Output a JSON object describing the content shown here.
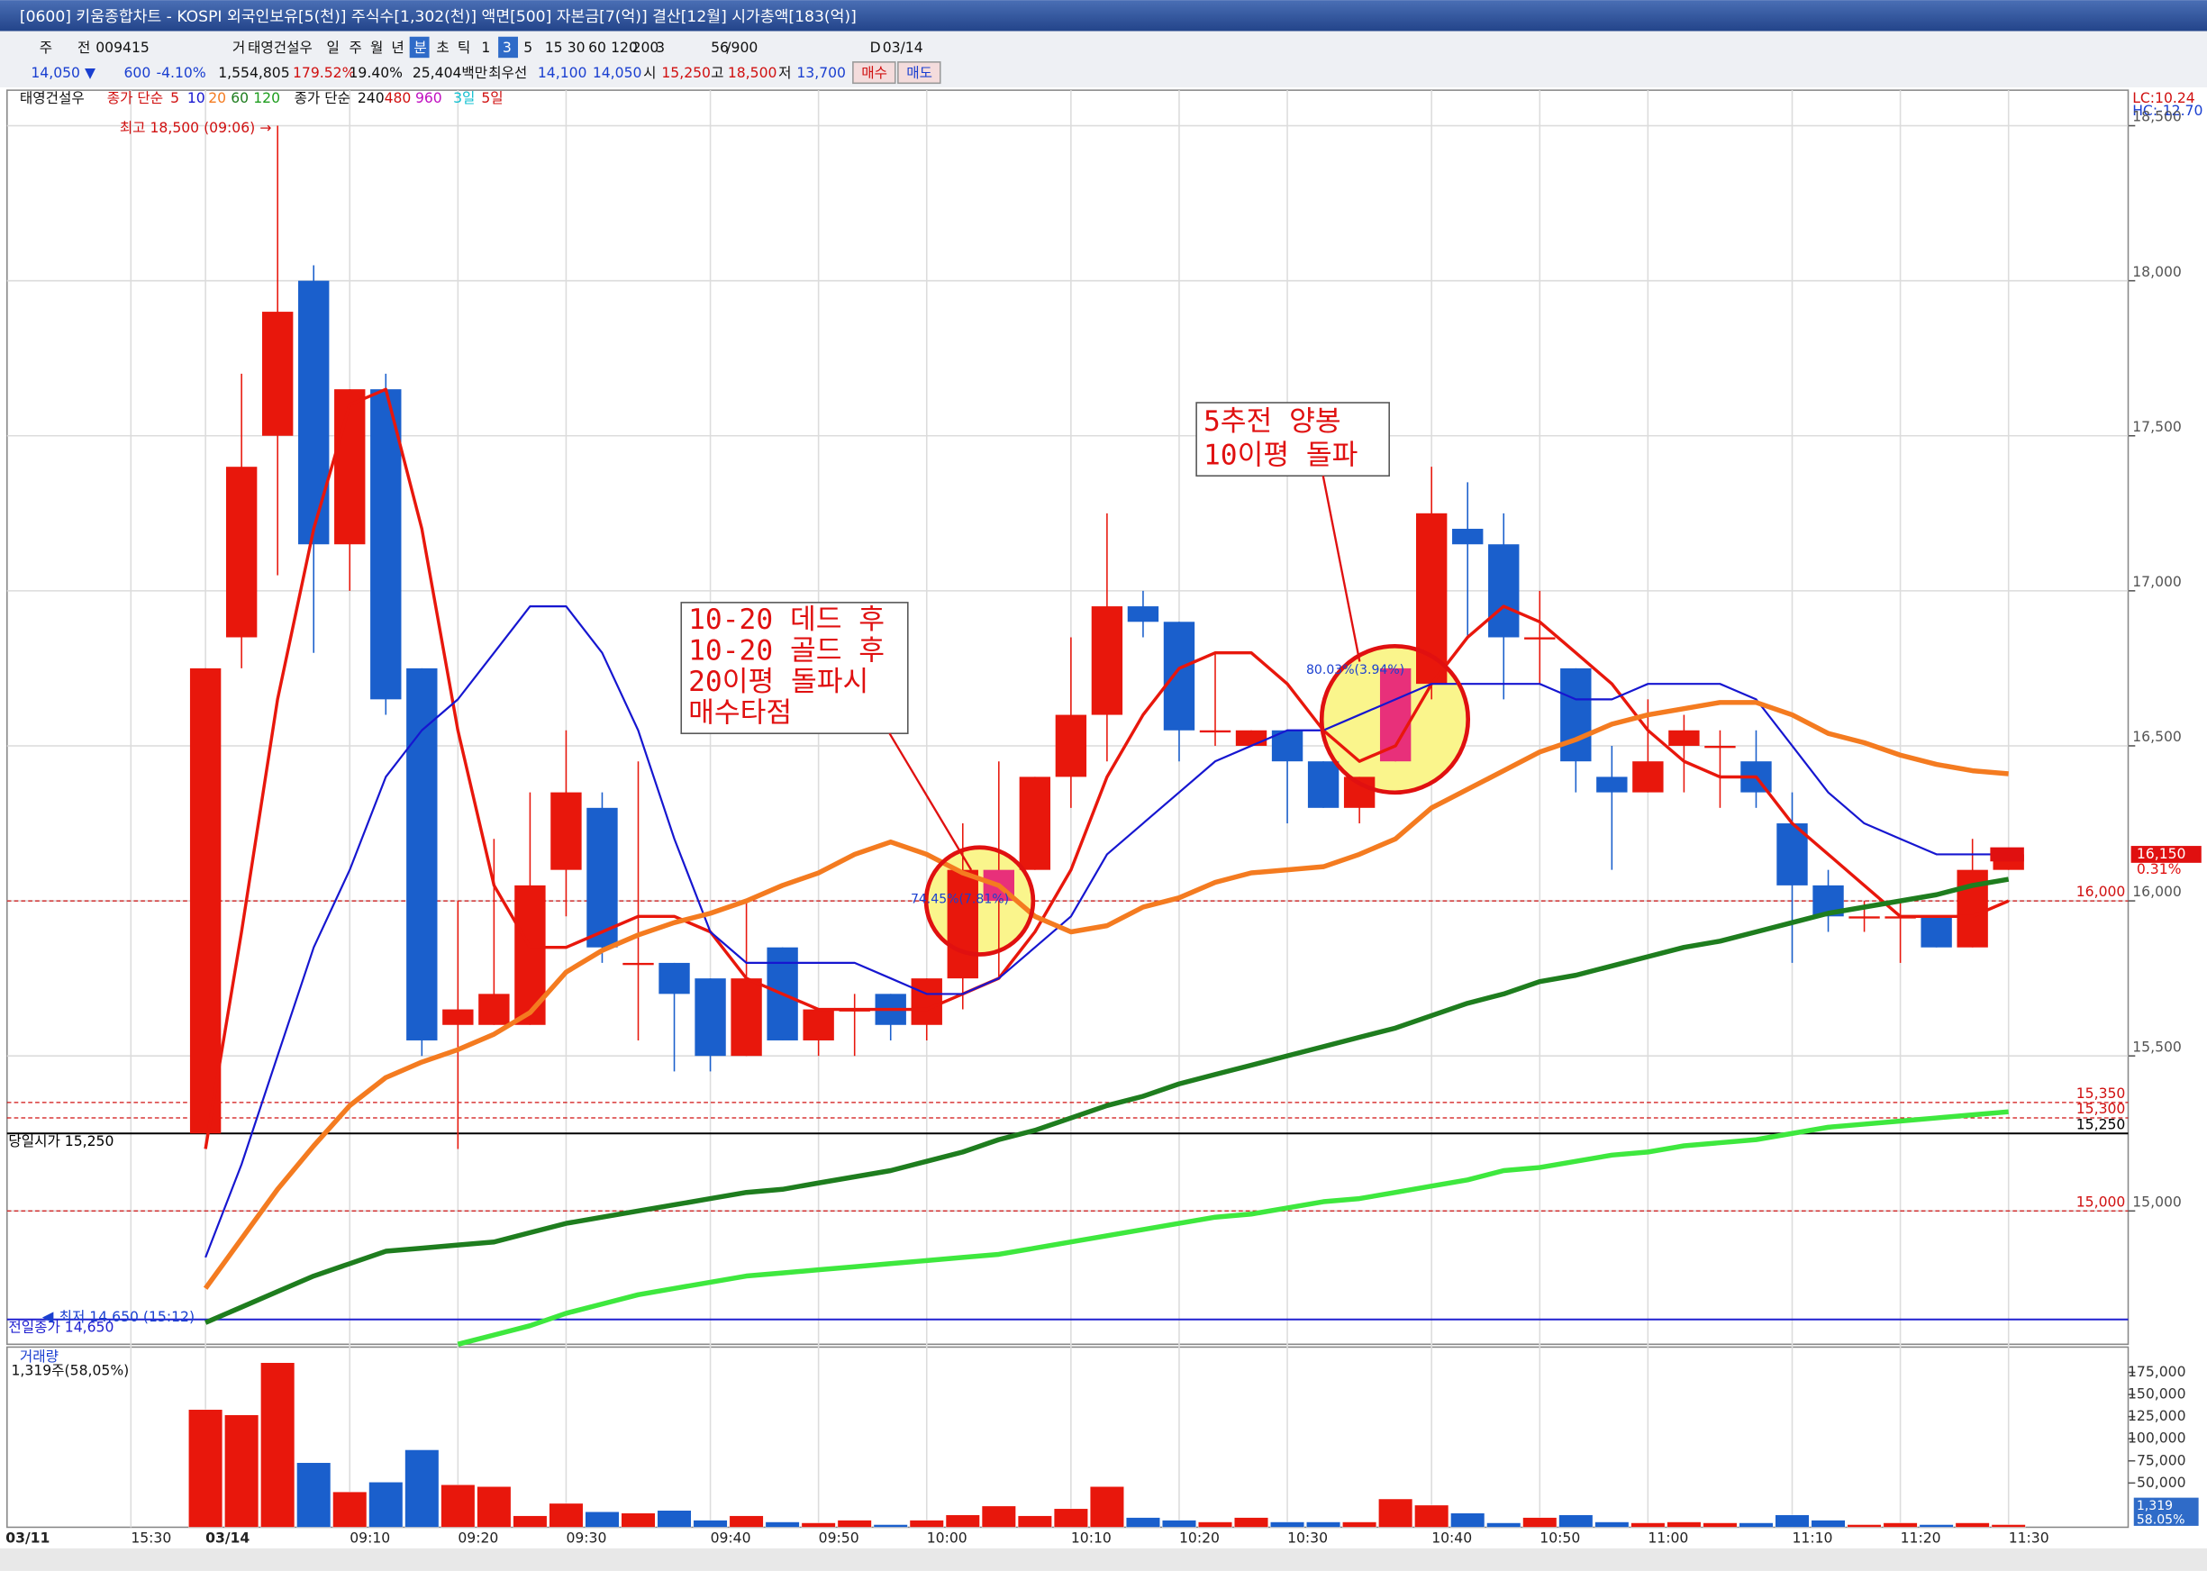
{
  "ui": {
    "title_bar": "[0600] 키움종합차트 - KOSPI 외국인보유[5(천)] 주식수[1,302(천)] 액면[500] 자본금[7(억)] 결산[12월] 시가총액[183(억)]",
    "toolbar": [
      "주",
      "전",
      "009415",
      "거",
      "태영건설우",
      "일",
      "주",
      "월",
      "년",
      "분",
      "초",
      "틱",
      "1",
      "3",
      "5",
      "15",
      "30",
      "60",
      "120",
      "200",
      "3",
      "56",
      "/900",
      "D",
      "03/14"
    ],
    "info_row": [
      "14,050 ▼",
      "600",
      "-4.10%",
      "1,554,805",
      "179.52%",
      "19.40%",
      "25,404백만",
      "최우선",
      "14,100",
      "14,050",
      "시",
      "15,250",
      "고",
      "18,500",
      "저",
      "13,700",
      "매수",
      "매도"
    ],
    "legend_row": [
      "태영건설우",
      "종가 단순",
      "5",
      "10",
      "20",
      "60",
      "120",
      "종가 단순",
      "240",
      "480",
      "960",
      "3일",
      "5일"
    ],
    "lc": "LC:10.24",
    "hc": "HC:-12.70",
    "prior_axis_labels": [
      "03/11",
      "15:30"
    ]
  },
  "chart_data": {
    "type": "candlestick",
    "up_color": "#e8170c",
    "down_color": "#1a5fcc",
    "categories": [
      "03/14",
      null,
      null,
      null,
      "09:10",
      null,
      null,
      "09:20",
      null,
      null,
      "09:30",
      null,
      null,
      null,
      "09:40",
      null,
      null,
      "09:50",
      null,
      null,
      "10:00",
      null,
      null,
      null,
      "10:10",
      null,
      null,
      "10:20",
      null,
      null,
      "10:30",
      null,
      null,
      null,
      "10:40",
      null,
      null,
      "10:50",
      null,
      null,
      "11:00",
      null,
      null,
      null,
      "11:10",
      null,
      null,
      "11:20",
      null,
      null,
      "11:30"
    ],
    "open": [
      15250,
      16850,
      17500,
      18000,
      17150,
      17650,
      16750,
      15600,
      15600,
      15600,
      16100,
      16300,
      15800,
      15800,
      15750,
      15500,
      15850,
      15550,
      15650,
      15700,
      15600,
      15750,
      16000,
      16100,
      16400,
      16600,
      16950,
      16900,
      16550,
      16500,
      16550,
      16450,
      16300,
      16450,
      16700,
      17200,
      17150,
      16850,
      16750,
      16400,
      16350,
      16500,
      16500,
      16450,
      16250,
      16050,
      15950,
      15950,
      15950,
      15850,
      16100
    ],
    "high": [
      16750,
      17700,
      18500,
      18050,
      17650,
      17700,
      16750,
      16000,
      16200,
      16350,
      16550,
      16350,
      16450,
      15800,
      15750,
      16000,
      15850,
      15650,
      15700,
      15700,
      15750,
      16250,
      16450,
      16400,
      16850,
      17250,
      17000,
      16900,
      16800,
      16550,
      16550,
      16450,
      16400,
      16750,
      17400,
      17350,
      17250,
      17000,
      16750,
      16500,
      16650,
      16600,
      16550,
      16550,
      16350,
      16100,
      16000,
      16000,
      15950,
      16200,
      16150
    ],
    "low": [
      15250,
      16750,
      17050,
      16800,
      17000,
      16600,
      15500,
      15200,
      15600,
      15600,
      15950,
      15800,
      15550,
      15450,
      15450,
      15500,
      15550,
      15500,
      15500,
      15550,
      15550,
      15650,
      15750,
      16100,
      16300,
      16450,
      16850,
      16450,
      16500,
      16500,
      16250,
      16300,
      16250,
      16450,
      16650,
      16850,
      16650,
      16700,
      16350,
      16100,
      16350,
      16350,
      16300,
      16300,
      15800,
      15900,
      15900,
      15800,
      15850,
      15850,
      16100
    ],
    "close": [
      16750,
      17400,
      17900,
      17150,
      17650,
      16650,
      15550,
      15650,
      15700,
      16050,
      16350,
      15850,
      15800,
      15700,
      15500,
      15750,
      15550,
      15650,
      15650,
      15600,
      15750,
      16100,
      16100,
      16400,
      16600,
      16950,
      16900,
      16550,
      16550,
      16550,
      16450,
      16300,
      16400,
      16750,
      17250,
      17150,
      16850,
      16850,
      16450,
      16350,
      16450,
      16550,
      16500,
      16350,
      16050,
      15950,
      15950,
      15950,
      15850,
      16100,
      16150
    ],
    "ylim": [
      14570,
      18610
    ],
    "yticks": [
      {
        "value": 15000,
        "label": "15,000"
      },
      {
        "value": 15500,
        "label": "15,500"
      },
      {
        "value": 16000,
        "label": "16,000"
      },
      {
        "value": 16500,
        "label": "16,500"
      },
      {
        "value": 17000,
        "label": "17,000"
      },
      {
        "value": 17500,
        "label": "17,500"
      },
      {
        "value": 18000,
        "label": "18,000"
      },
      {
        "value": 18500,
        "label": "18,500"
      }
    ],
    "grid": true,
    "ma": [
      {
        "name": "5",
        "color": "#e8170c",
        "width": 2.2,
        "values": [
          15200,
          15900,
          16650,
          17200,
          17600,
          17650,
          17200,
          16550,
          16050,
          15850,
          15850,
          15900,
          15950,
          15950,
          15900,
          15750,
          15700,
          15650,
          15650,
          15650,
          15650,
          15700,
          15750,
          15900,
          16100,
          16400,
          16600,
          16750,
          16800,
          16800,
          16700,
          16550,
          16450,
          16500,
          16700,
          16850,
          16950,
          16900,
          16800,
          16700,
          16550,
          16450,
          16400,
          16400,
          16250,
          16150,
          16050,
          15950,
          15950,
          15950,
          16000
        ]
      },
      {
        "name": "10",
        "color": "#1616d0",
        "width": 1.4,
        "values": [
          14850,
          15150,
          15500,
          15850,
          16100,
          16400,
          16550,
          16650,
          16800,
          16950,
          16950,
          16800,
          16550,
          16200,
          15900,
          15800,
          15800,
          15800,
          15800,
          15750,
          15700,
          15700,
          15750,
          15850,
          15950,
          16150,
          16250,
          16350,
          16450,
          16500,
          16550,
          16550,
          16600,
          16650,
          16700,
          16700,
          16700,
          16700,
          16650,
          16650,
          16700,
          16700,
          16700,
          16650,
          16500,
          16350,
          16250,
          16200,
          16150,
          16150,
          16150
        ]
      },
      {
        "name": "20",
        "color": "#f47b20",
        "width": 3.5,
        "values": [
          14750,
          14910,
          15070,
          15210,
          15340,
          15430,
          15480,
          15520,
          15570,
          15640,
          15770,
          15840,
          15890,
          15930,
          15960,
          16000,
          16050,
          16090,
          16150,
          16190,
          16150,
          16090,
          16050,
          15950,
          15900,
          15920,
          15980,
          16010,
          16060,
          16090,
          16100,
          16110,
          16150,
          16200,
          16300,
          16360,
          16420,
          16480,
          16520,
          16570,
          16600,
          16620,
          16640,
          16640,
          16600,
          16540,
          16510,
          16470,
          16440,
          16420,
          16410
        ]
      },
      {
        "name": "240",
        "color": "#1e7d1e",
        "width": 3.5,
        "values": [
          14640,
          14690,
          14740,
          14790,
          14830,
          14870,
          14880,
          14890,
          14900,
          14930,
          14960,
          14980,
          15000,
          15020,
          15040,
          15060,
          15070,
          15090,
          15110,
          15130,
          15160,
          15190,
          15230,
          15260,
          15300,
          15340,
          15370,
          15410,
          15440,
          15470,
          15500,
          15530,
          15560,
          15590,
          15630,
          15670,
          15700,
          15740,
          15760,
          15790,
          15820,
          15850,
          15870,
          15900,
          15930,
          15960,
          15980,
          16000,
          16020,
          16050,
          16070
        ]
      },
      {
        "name": "480",
        "color": "#3ee83e",
        "width": 3.5,
        "values": [
          null,
          null,
          null,
          null,
          null,
          null,
          null,
          14570,
          14600,
          14630,
          14670,
          14700,
          14730,
          14750,
          14770,
          14790,
          14800,
          14810,
          14820,
          14830,
          14840,
          14850,
          14860,
          14880,
          14900,
          14920,
          14940,
          14960,
          14980,
          14990,
          15010,
          15030,
          15040,
          15060,
          15080,
          15100,
          15130,
          15140,
          15160,
          15180,
          15190,
          15210,
          15220,
          15230,
          15250,
          15270,
          15280,
          15290,
          15300,
          15310,
          15320
        ]
      }
    ],
    "price_lines": [
      {
        "value": 15350,
        "label": "15,350",
        "color": "#d01010",
        "style": "dashed"
      },
      {
        "value": 15300,
        "label": "15,300",
        "color": "#d01010",
        "style": "dashed"
      },
      {
        "value": 16000,
        "label": "16,000",
        "color": "#d01010",
        "style": "dashed"
      },
      {
        "value": 15000,
        "label": "15,000",
        "color": "#d01010",
        "style": "dashed"
      },
      {
        "value": 15250,
        "label": "15,250",
        "color": "#000000",
        "style": "solid",
        "text": "당일시가 15,250"
      },
      {
        "value": 14650,
        "color": "#2020d0",
        "style": "solid",
        "text": "전일종가 14,650"
      }
    ],
    "current_price": {
      "value": 16150,
      "label": "16,150"
    },
    "current_change": {
      "value": 0.31,
      "label": "0.31%"
    },
    "annotations": {
      "high_note": "최고 18,500 (09:06) →",
      "low_note": "최저 14,650 (15:12)",
      "pct_1": "74.45%(7.81%)",
      "pct_2": "80.03%(3.94%)",
      "box_1": [
        "10-20 데드 후",
        "10-20 골드 후",
        "20이평 돌파시",
        "매수타점"
      ],
      "box_2": [
        "5추전 양봉",
        "10이평 돌파"
      ]
    },
    "volume": {
      "title": "거래량",
      "readout": "1,319주(58,05%)",
      "box": [
        "1,319",
        "58.05%"
      ],
      "values": [
        133000,
        127000,
        186000,
        73000,
        40000,
        51000,
        87500,
        48000,
        46000,
        13000,
        27000,
        17500,
        16000,
        19000,
        8000,
        13000,
        6000,
        5000,
        8000,
        3000,
        8000,
        14000,
        24000,
        13000,
        21000,
        46000,
        11000,
        8000,
        6000,
        11000,
        6000,
        6000,
        6000,
        32000,
        25000,
        16000,
        5000,
        11000,
        14000,
        6000,
        5000,
        6000,
        5000,
        5000,
        14000,
        8000,
        3000,
        5000,
        3000,
        5000,
        3000
      ],
      "ylim": [
        0,
        202000
      ],
      "yticks": [
        {
          "value": 50000,
          "label": "50,000"
        },
        {
          "value": 75000,
          "label": "75,000"
        },
        {
          "value": 100000,
          "label": "100,000"
        },
        {
          "value": 125000,
          "label": "125,000"
        },
        {
          "value": 150000,
          "label": "150,000"
        },
        {
          "value": 175000,
          "label": "175,000"
        }
      ]
    }
  }
}
